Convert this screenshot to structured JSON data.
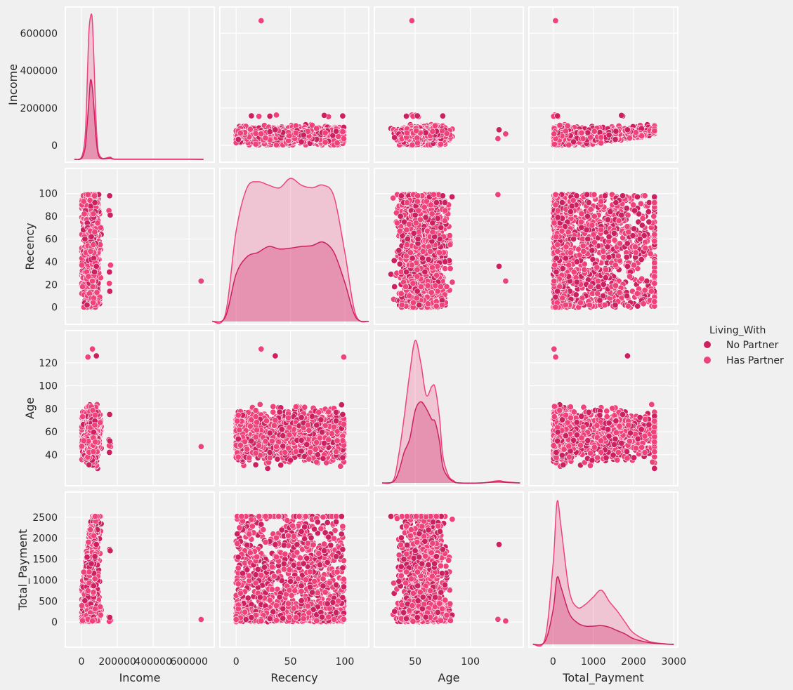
{
  "chart_data": {
    "type": "scatter",
    "kind": "pairplot",
    "variables": [
      "Income",
      "Recency",
      "Age",
      "Total_Payment"
    ],
    "hue": "Living_With",
    "legend": {
      "title": "Living_With",
      "entries": [
        {
          "name": "No Partner",
          "color": "#cc2060"
        },
        {
          "name": "Has Partner",
          "color": "#f0427a"
        }
      ],
      "placement": "right"
    },
    "axes": {
      "Income": {
        "range": [
          -90000,
          740000
        ],
        "ticks": [
          0,
          200000,
          400000,
          600000
        ],
        "tick_labels": [
          "0",
          "200000",
          "400000",
          "600000"
        ]
      },
      "Recency": {
        "range": [
          -15,
          122
        ],
        "ticks": [
          0,
          20,
          40,
          60,
          80,
          100
        ],
        "tick_labels": [
          "0",
          "20",
          "40",
          "60",
          "80",
          "100"
        ],
        "x_ticks": [
          0,
          50,
          100
        ],
        "x_tick_labels": [
          "0",
          "50",
          "100"
        ]
      },
      "Age": {
        "range": [
          13,
          148
        ],
        "ticks": [
          40,
          60,
          80,
          100,
          120
        ],
        "tick_labels": [
          "40",
          "60",
          "80",
          "100",
          "120"
        ],
        "x_ticks": [
          50,
          100
        ],
        "x_tick_labels": [
          "50",
          "100"
        ]
      },
      "Total_Payment": {
        "range": [
          -600,
          3100
        ],
        "ticks": [
          0,
          500,
          1000,
          1500,
          2000,
          2500
        ],
        "tick_labels": [
          "0",
          "500",
          "1000",
          "1500",
          "2000",
          "2500"
        ],
        "x_ticks": [
          0,
          1000,
          2000,
          3000
        ],
        "x_tick_labels": [
          "0",
          "1000",
          "2000",
          "3000"
        ]
      }
    },
    "outliers": [
      {
        "Income": 666666,
        "Recency": 23,
        "Age": 47,
        "Total_Payment": 62
      },
      {
        "Income": 157000,
        "Recency": 98,
        "Age": 75,
        "Total_Payment": 1730
      },
      {
        "Income": 153000,
        "Recency": 85,
        "Age": 53,
        "Total_Payment": 120
      },
      {
        "Income": 160000,
        "Recency": 81,
        "Age": 50,
        "Total_Payment": 1700
      },
      {
        "Income": 162000,
        "Recency": 37,
        "Age": 47,
        "Total_Payment": 40
      },
      {
        "Income": 156000,
        "Recency": 31,
        "Age": 42,
        "Total_Payment": 80
      },
      {
        "Income": 155000,
        "Recency": 21,
        "Age": 48,
        "Total_Payment": 15
      },
      {
        "Income": 158000,
        "Recency": 14,
        "Age": 52,
        "Total_Payment": 110
      },
      {
        "Income": 36000,
        "Recency": 99,
        "Age": 125,
        "Total_Payment": 65
      },
      {
        "Income": 83000,
        "Recency": 36,
        "Age": 126,
        "Total_Payment": 1850
      },
      {
        "Income": 61000,
        "Recency": 23,
        "Age": 132,
        "Total_Payment": 25
      }
    ],
    "kde": {
      "Income": {
        "x": [
          -40000,
          0,
          20000,
          30000,
          40000,
          50000,
          60000,
          70000,
          80000,
          90000,
          100000,
          120000,
          160000,
          180000,
          250000,
          600000,
          680000
        ],
        "No Partner": [
          0,
          0.02,
          0.25,
          0.7,
          1.25,
          1.8,
          1.65,
          1.15,
          0.55,
          0.18,
          0.05,
          0.01,
          0.03,
          0.004,
          0.002,
          0.002,
          0
        ],
        "Has Partner": [
          0,
          0.05,
          0.5,
          1.5,
          2.8,
          3.25,
          3.2,
          2.2,
          1.0,
          0.3,
          0.1,
          0.02,
          0.05,
          0.008,
          0.004,
          0.004,
          0
        ]
      },
      "Recency": {
        "x": [
          -22,
          -10,
          0,
          10,
          20,
          30,
          40,
          50,
          60,
          70,
          80,
          90,
          100,
          110,
          122
        ],
        "No Partner": [
          0,
          0.05,
          0.55,
          0.75,
          0.8,
          0.87,
          0.84,
          0.85,
          0.87,
          0.88,
          0.92,
          0.8,
          0.45,
          0.05,
          0
        ],
        "Has Partner": [
          0,
          0.08,
          1.05,
          1.55,
          1.62,
          1.58,
          1.55,
          1.66,
          1.58,
          1.55,
          1.58,
          1.45,
          0.8,
          0.08,
          0
        ]
      },
      "Age": {
        "x": [
          20,
          30,
          35,
          40,
          45,
          50,
          55,
          60,
          65,
          68,
          72,
          75,
          80,
          85,
          90,
          110,
          125,
          132,
          145
        ],
        "No Partner": [
          0,
          0.01,
          0.1,
          0.28,
          0.4,
          0.66,
          0.74,
          0.68,
          0.58,
          0.56,
          0.38,
          0.15,
          0.05,
          0.01,
          0,
          0,
          0.01,
          0.005,
          0
        ],
        "Has Partner": [
          0,
          0.02,
          0.25,
          0.6,
          1.0,
          1.3,
          1.1,
          0.8,
          0.88,
          0.87,
          0.6,
          0.25,
          0.07,
          0.02,
          0,
          0,
          0.02,
          0.01,
          0
        ]
      },
      "Total_Payment": {
        "x": [
          -500,
          -200,
          0,
          100,
          200,
          400,
          600,
          800,
          1000,
          1200,
          1400,
          1600,
          1800,
          2000,
          2400,
          2800,
          3000
        ],
        "No Partner": [
          0,
          0.05,
          0.6,
          1.17,
          1.0,
          0.55,
          0.38,
          0.32,
          0.32,
          0.33,
          0.3,
          0.24,
          0.18,
          0.1,
          0.03,
          0.005,
          0
        ],
        "Has Partner": [
          0,
          0.1,
          1.4,
          2.5,
          2.05,
          0.95,
          0.65,
          0.7,
          0.83,
          0.95,
          0.75,
          0.58,
          0.38,
          0.2,
          0.05,
          0.01,
          0
        ]
      }
    },
    "scatter_count": 1900
  }
}
